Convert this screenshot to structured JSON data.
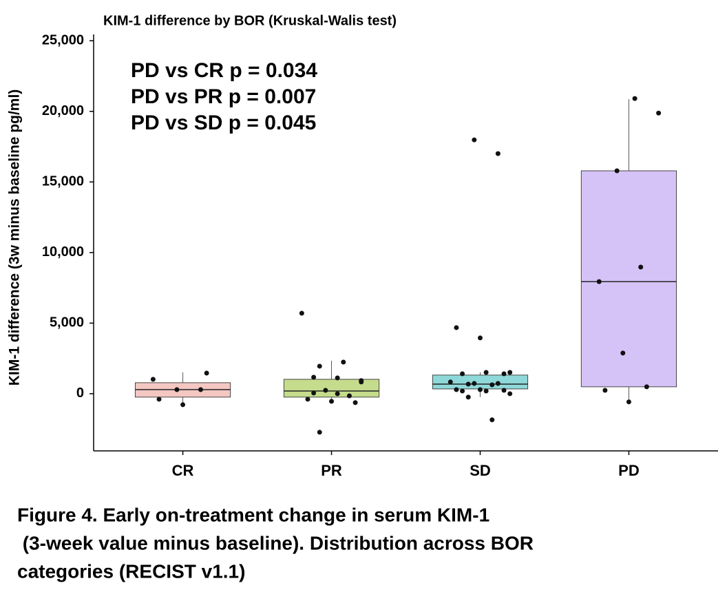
{
  "chart_data": {
    "type": "boxplot",
    "title": "KIM-1 difference by BOR (Kruskal-Walis test)",
    "y_label": "KIM-1 difference  (3w minus baseline pg/ml)",
    "annotations": [
      "PD vs CR p = 0.034",
      "PD vs PR p = 0.007",
      "PD vs SD p = 0.045"
    ],
    "caption": [
      "Figure 4. Early on-treatment change in serum KIM-1",
      " (3-week value minus baseline). Distribution across BOR",
      "categories (RECIST v1.1)"
    ],
    "categories": [
      "CR",
      "PR",
      "SD",
      "PD"
    ],
    "colors": [
      "#f4c7c3",
      "#c5dc8c",
      "#8fd8d9",
      "#d5c3f7"
    ],
    "boxes": [
      {
        "whislo": -830,
        "q1": -240,
        "med": 290,
        "q3": 780,
        "whishi": 1510
      },
      {
        "whislo": -540,
        "q1": -240,
        "med": 190,
        "q3": 1020,
        "whishi": 2340
      },
      {
        "whislo": -240,
        "q1": 340,
        "med": 680,
        "q3": 1320,
        "whishi": 1510
      },
      {
        "whislo": -680,
        "q1": 490,
        "med": 7940,
        "q3": 15790,
        "whishi": 20860
      }
    ],
    "points": [
      [
        1020,
        290,
        290,
        -390,
        -780,
        1460
      ],
      [
        1170,
        1120,
        930,
        1950,
        2240,
        5700,
        240,
        -150,
        -390,
        -540,
        -630,
        50,
        0,
        830,
        -2730
      ],
      [
        17980,
        17010,
        4680,
        3950,
        1410,
        1410,
        1510,
        1510,
        680,
        630,
        830,
        730,
        730,
        290,
        290,
        240,
        190,
        190,
        0,
        -240,
        -1850
      ],
      [
        20910,
        19880,
        15790,
        8970,
        7940,
        2880,
        490,
        240,
        -580
      ]
    ],
    "ylim": [
      -4050,
      25450
    ],
    "yticks": [
      0,
      {
        "value": 5000,
        "label": "5,000"
      },
      {
        "value": 10000,
        "label": "10,000"
      },
      {
        "value": 15000,
        "label": "15,000"
      },
      {
        "value": 20000,
        "label": "20,000"
      },
      {
        "value": 25000,
        "label": "25,000"
      }
    ],
    "annotation_color": "#e0403a",
    "point_color": "#111111"
  }
}
